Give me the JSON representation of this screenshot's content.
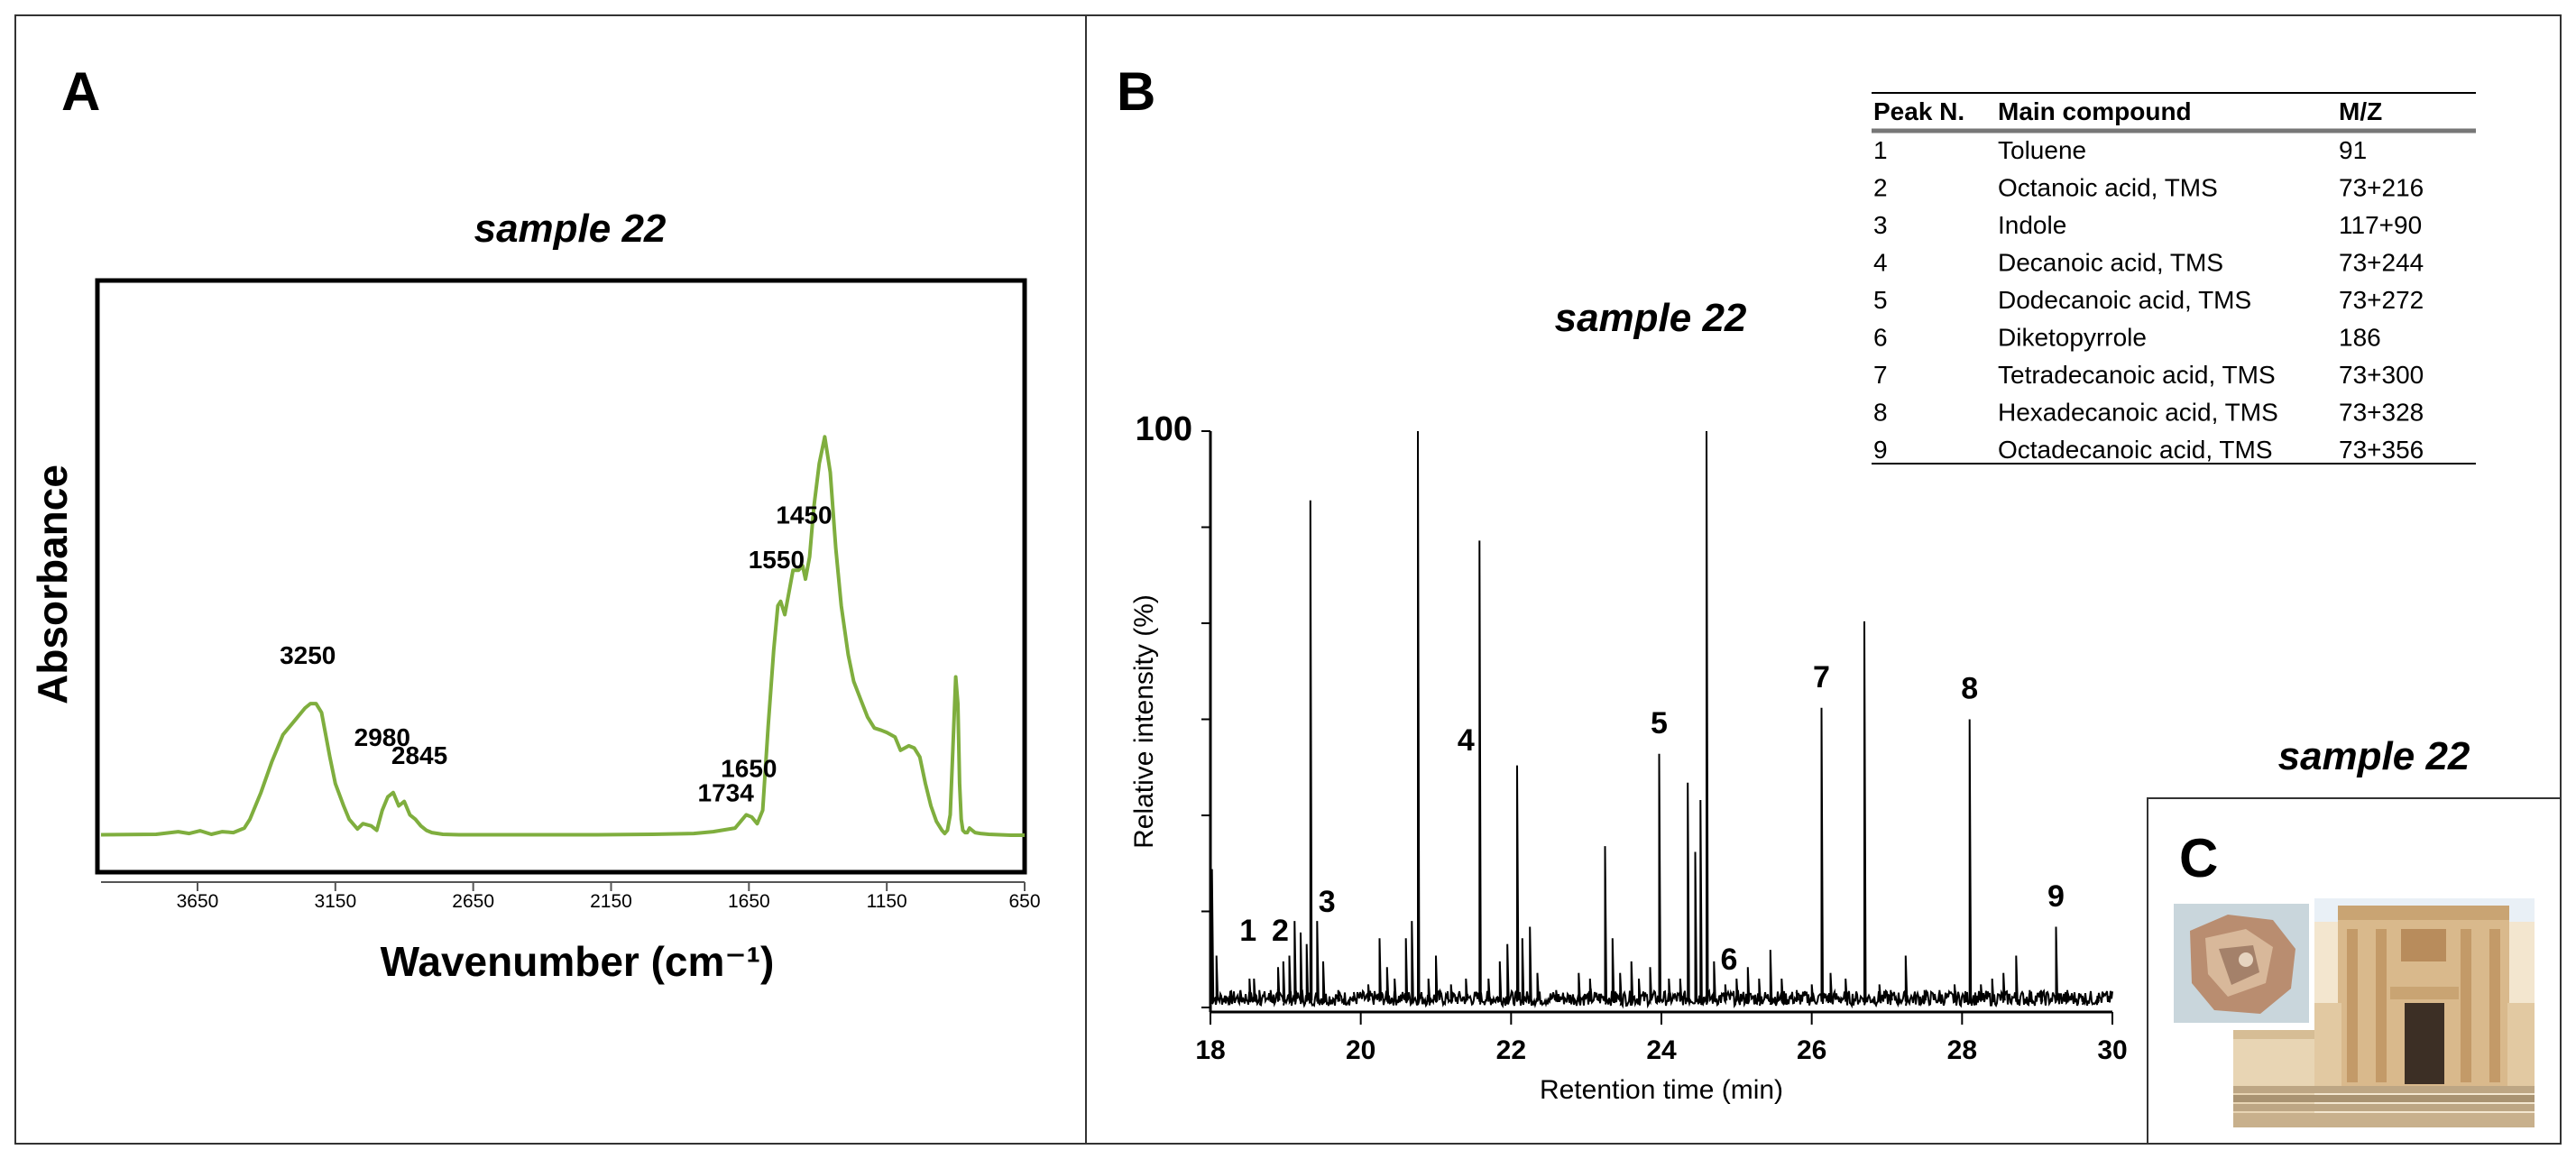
{
  "panels": {
    "a": {
      "letter": "A",
      "title": "sample 22"
    },
    "b": {
      "letter": "B",
      "title": "sample 22"
    },
    "c": {
      "letter": "C",
      "title": "sample 22",
      "photo_alt": "Fragment and church facade"
    }
  },
  "colors": {
    "ftir": "#7fae3e",
    "chrom": "#000000",
    "frame": "#000000"
  },
  "chart_data": [
    {
      "id": "ftir",
      "type": "line",
      "title": "sample 22",
      "xlabel": "Wavenumber (cm⁻¹)",
      "ylabel": "Absorbance",
      "xlim": [
        4000,
        650
      ],
      "ylim": [
        0,
        1
      ],
      "xticks": [
        "3650",
        "3150",
        "2650",
        "2150",
        "1650",
        "1150",
        "650"
      ],
      "annotations": [
        {
          "label": "3250",
          "x": 3250,
          "y": 0.345
        },
        {
          "label": "2980",
          "x": 2980,
          "y": 0.16
        },
        {
          "label": "2845",
          "x": 2845,
          "y": 0.12
        },
        {
          "label": "1734",
          "x": 1734,
          "y": 0.035
        },
        {
          "label": "1650",
          "x": 1650,
          "y": 0.09
        },
        {
          "label": "1550",
          "x": 1550,
          "y": 0.56
        },
        {
          "label": "1450",
          "x": 1450,
          "y": 0.66
        }
      ],
      "x": [
        4000,
        3800,
        3720,
        3680,
        3640,
        3600,
        3560,
        3520,
        3480,
        3460,
        3420,
        3380,
        3340,
        3300,
        3260,
        3240,
        3220,
        3200,
        3170,
        3150,
        3120,
        3100,
        3070,
        3050,
        3020,
        3000,
        2980,
        2960,
        2940,
        2920,
        2900,
        2880,
        2860,
        2840,
        2820,
        2800,
        2760,
        2700,
        2500,
        2200,
        2000,
        1850,
        1780,
        1740,
        1700,
        1680,
        1660,
        1640,
        1620,
        1600,
        1580,
        1560,
        1545,
        1535,
        1520,
        1505,
        1490,
        1470,
        1455,
        1445,
        1430,
        1415,
        1395,
        1375,
        1355,
        1335,
        1315,
        1290,
        1270,
        1245,
        1220,
        1195,
        1170,
        1150,
        1120,
        1100,
        1070,
        1050,
        1030,
        1010,
        990,
        970,
        950,
        940,
        930,
        920,
        910,
        900,
        892,
        886,
        880,
        874,
        866,
        858,
        850,
        840,
        830,
        810,
        780,
        740,
        700,
        650
      ],
      "y": [
        0.005,
        0.006,
        0.012,
        0.008,
        0.014,
        0.006,
        0.012,
        0.01,
        0.02,
        0.04,
        0.1,
        0.17,
        0.23,
        0.26,
        0.29,
        0.3,
        0.3,
        0.28,
        0.18,
        0.12,
        0.07,
        0.04,
        0.018,
        0.03,
        0.025,
        0.015,
        0.06,
        0.09,
        0.1,
        0.07,
        0.08,
        0.05,
        0.04,
        0.025,
        0.015,
        0.01,
        0.006,
        0.005,
        0.005,
        0.005,
        0.006,
        0.008,
        0.012,
        0.016,
        0.02,
        0.035,
        0.05,
        0.045,
        0.03,
        0.06,
        0.25,
        0.42,
        0.52,
        0.53,
        0.5,
        0.55,
        0.6,
        0.6,
        0.61,
        0.58,
        0.63,
        0.74,
        0.84,
        0.9,
        0.82,
        0.65,
        0.52,
        0.41,
        0.35,
        0.31,
        0.27,
        0.245,
        0.24,
        0.235,
        0.225,
        0.195,
        0.205,
        0.2,
        0.18,
        0.12,
        0.07,
        0.035,
        0.015,
        0.008,
        0.015,
        0.05,
        0.2,
        0.36,
        0.3,
        0.12,
        0.04,
        0.015,
        0.01,
        0.01,
        0.02,
        0.015,
        0.01,
        0.008,
        0.006,
        0.005,
        0.004,
        0.004
      ]
    },
    {
      "id": "chromatogram",
      "type": "line",
      "title": "sample 22",
      "xlabel": "Retention time (min)",
      "ylabel": "Relative intensity (%)",
      "xlim": [
        18,
        30
      ],
      "ylim": [
        0,
        100
      ],
      "xticks": [
        "18",
        "20",
        "22",
        "24",
        "26",
        "28",
        "30"
      ],
      "ytick_top_label": "100",
      "peaks": [
        {
          "t": 18.02,
          "h": 24
        },
        {
          "t": 18.08,
          "h": 9
        },
        {
          "t": 18.25,
          "h": 2
        },
        {
          "t": 18.4,
          "h": 3
        },
        {
          "t": 18.52,
          "h": 5
        },
        {
          "t": 18.58,
          "h": 5
        },
        {
          "t": 18.65,
          "h": 3
        },
        {
          "t": 18.8,
          "h": 3
        },
        {
          "t": 18.9,
          "h": 7
        },
        {
          "t": 18.97,
          "h": 8
        },
        {
          "t": 19.05,
          "h": 9
        },
        {
          "t": 19.12,
          "h": 15
        },
        {
          "t": 19.2,
          "h": 13
        },
        {
          "t": 19.28,
          "h": 11
        },
        {
          "t": 19.33,
          "h": 88
        },
        {
          "t": 19.42,
          "h": 15
        },
        {
          "t": 19.5,
          "h": 8
        },
        {
          "t": 19.7,
          "h": 3
        },
        {
          "t": 19.9,
          "h": 2
        },
        {
          "t": 20.1,
          "h": 4
        },
        {
          "t": 20.25,
          "h": 12
        },
        {
          "t": 20.35,
          "h": 7
        },
        {
          "t": 20.45,
          "h": 5
        },
        {
          "t": 20.6,
          "h": 12
        },
        {
          "t": 20.68,
          "h": 15
        },
        {
          "t": 20.76,
          "h": 100
        },
        {
          "t": 20.9,
          "h": 5
        },
        {
          "t": 21.0,
          "h": 9
        },
        {
          "t": 21.2,
          "h": 4
        },
        {
          "t": 21.4,
          "h": 5
        },
        {
          "t": 21.58,
          "h": 81
        },
        {
          "t": 21.7,
          "h": 5
        },
        {
          "t": 21.85,
          "h": 8
        },
        {
          "t": 21.95,
          "h": 11
        },
        {
          "t": 22.08,
          "h": 42
        },
        {
          "t": 22.15,
          "h": 12
        },
        {
          "t": 22.25,
          "h": 14
        },
        {
          "t": 22.35,
          "h": 6
        },
        {
          "t": 22.6,
          "h": 3
        },
        {
          "t": 22.9,
          "h": 6
        },
        {
          "t": 23.05,
          "h": 5
        },
        {
          "t": 23.25,
          "h": 28
        },
        {
          "t": 23.35,
          "h": 12
        },
        {
          "t": 23.45,
          "h": 6
        },
        {
          "t": 23.6,
          "h": 8
        },
        {
          "t": 23.7,
          "h": 5
        },
        {
          "t": 23.85,
          "h": 7
        },
        {
          "t": 23.97,
          "h": 44
        },
        {
          "t": 24.1,
          "h": 5
        },
        {
          "t": 24.25,
          "h": 5
        },
        {
          "t": 24.35,
          "h": 39
        },
        {
          "t": 24.45,
          "h": 27
        },
        {
          "t": 24.52,
          "h": 36
        },
        {
          "t": 24.6,
          "h": 100
        },
        {
          "t": 24.7,
          "h": 8
        },
        {
          "t": 24.85,
          "h": 4
        },
        {
          "t": 25.0,
          "h": 5
        },
        {
          "t": 25.15,
          "h": 7
        },
        {
          "t": 25.3,
          "h": 5
        },
        {
          "t": 25.45,
          "h": 10
        },
        {
          "t": 25.6,
          "h": 5
        },
        {
          "t": 25.8,
          "h": 3
        },
        {
          "t": 26.0,
          "h": 4
        },
        {
          "t": 26.13,
          "h": 52
        },
        {
          "t": 26.25,
          "h": 6
        },
        {
          "t": 26.45,
          "h": 5
        },
        {
          "t": 26.7,
          "h": 67
        },
        {
          "t": 26.9,
          "h": 4
        },
        {
          "t": 27.05,
          "h": 3
        },
        {
          "t": 27.25,
          "h": 9
        },
        {
          "t": 27.5,
          "h": 3
        },
        {
          "t": 27.7,
          "h": 3
        },
        {
          "t": 27.9,
          "h": 4
        },
        {
          "t": 28.1,
          "h": 50
        },
        {
          "t": 28.25,
          "h": 4
        },
        {
          "t": 28.4,
          "h": 5
        },
        {
          "t": 28.55,
          "h": 6
        },
        {
          "t": 28.72,
          "h": 9
        },
        {
          "t": 28.9,
          "h": 3
        },
        {
          "t": 29.05,
          "h": 3
        },
        {
          "t": 29.25,
          "h": 14
        },
        {
          "t": 29.4,
          "h": 3
        },
        {
          "t": 29.6,
          "h": 2
        },
        {
          "t": 29.8,
          "h": 2
        }
      ],
      "peak_labels": [
        {
          "label": "1",
          "t": 18.5,
          "h": 10
        },
        {
          "label": "2",
          "t": 18.93,
          "h": 10
        },
        {
          "label": "3",
          "t": 19.55,
          "h": 15
        },
        {
          "label": "4",
          "t": 21.4,
          "h": 43
        },
        {
          "label": "5",
          "t": 23.97,
          "h": 46
        },
        {
          "label": "6",
          "t": 24.9,
          "h": 5
        },
        {
          "label": "7",
          "t": 26.13,
          "h": 54
        },
        {
          "label": "8",
          "t": 28.1,
          "h": 52
        },
        {
          "label": "9",
          "t": 29.25,
          "h": 16
        }
      ]
    },
    {
      "id": "compound_table",
      "type": "table",
      "columns": [
        "Peak N.",
        "Main compound",
        "M/Z"
      ],
      "rows": [
        [
          "1",
          "Toluene",
          "91"
        ],
        [
          "2",
          "Octanoic acid, TMS",
          "73+216"
        ],
        [
          "3",
          "Indole",
          "117+90"
        ],
        [
          "4",
          "Decanoic acid, TMS",
          "73+244"
        ],
        [
          "5",
          "Dodecanoic acid, TMS",
          "73+272"
        ],
        [
          "6",
          "Diketopyrrole",
          "186"
        ],
        [
          "7",
          "Tetradecanoic acid, TMS",
          "73+300"
        ],
        [
          "8",
          "Hexadecanoic acid, TMS",
          "73+328"
        ],
        [
          "9",
          "Octadecanoic acid, TMS",
          "73+356"
        ]
      ]
    }
  ]
}
